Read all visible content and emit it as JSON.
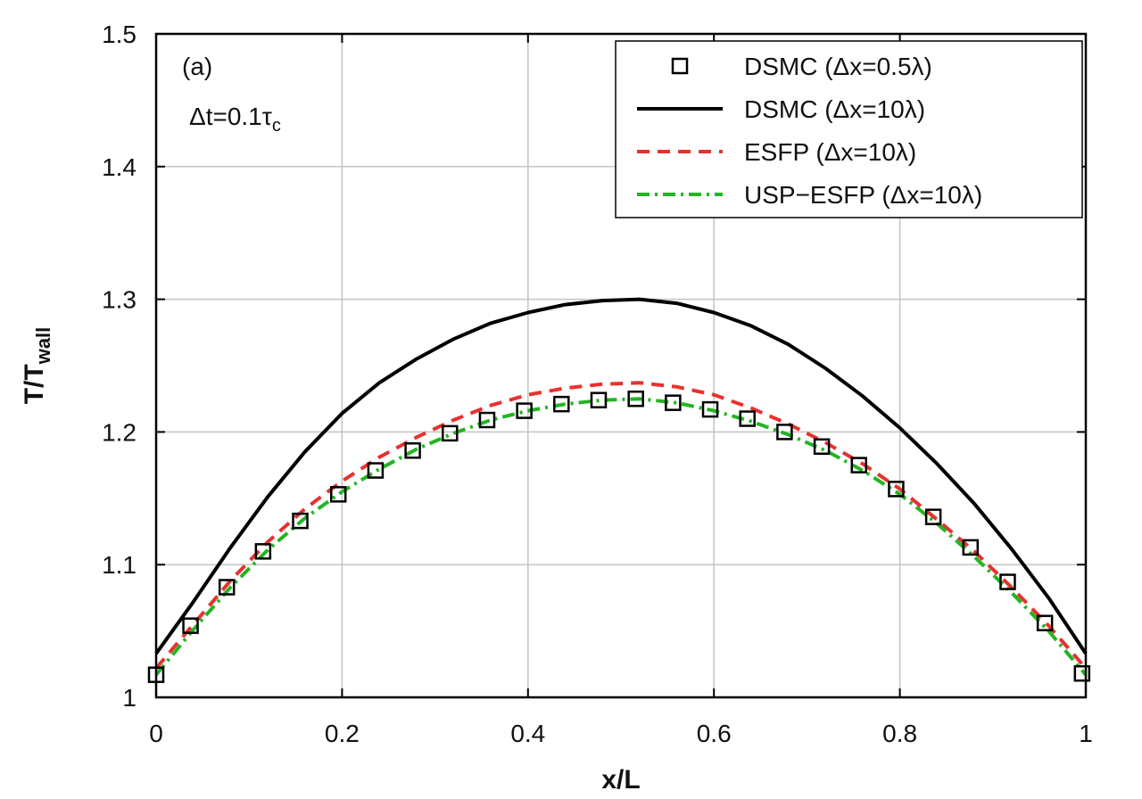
{
  "chart_data": {
    "type": "line",
    "xlabel": "x/L",
    "ylabel_main": "T/T",
    "ylabel_sub": "wall",
    "xlim": [
      0,
      1
    ],
    "ylim": [
      1,
      1.5
    ],
    "x_ticks": [
      0,
      0.2,
      0.4,
      0.6,
      0.8,
      1
    ],
    "x_tick_labels": [
      "0",
      "0.2",
      "0.4",
      "0.6",
      "0.8",
      "1"
    ],
    "y_ticks": [
      1,
      1.1,
      1.2,
      1.3,
      1.4,
      1.5
    ],
    "y_tick_labels": [
      "1",
      "1.1",
      "1.2",
      "1.3",
      "1.4",
      "1.5"
    ],
    "grid": true,
    "legend_position": "top-right",
    "annotations": {
      "panel": "(a)",
      "dt_prefix": "Δt=0.1τ",
      "dt_sub": "c"
    },
    "series": [
      {
        "name": "DSMC (Δx=0.5λ)",
        "style": "square-markers",
        "color": "#000000",
        "x": [
          0,
          0.037,
          0.076,
          0.115,
          0.155,
          0.196,
          0.236,
          0.276,
          0.316,
          0.356,
          0.396,
          0.436,
          0.476,
          0.516,
          0.556,
          0.596,
          0.636,
          0.676,
          0.716,
          0.756,
          0.796,
          0.836,
          0.876,
          0.916,
          0.956,
          0.996
        ],
        "y": [
          1.017,
          1.054,
          1.083,
          1.11,
          1.133,
          1.153,
          1.171,
          1.186,
          1.199,
          1.209,
          1.216,
          1.221,
          1.224,
          1.225,
          1.222,
          1.217,
          1.21,
          1.2,
          1.189,
          1.175,
          1.157,
          1.136,
          1.113,
          1.087,
          1.056,
          1.018
        ]
      },
      {
        "name": "DSMC (Δx=10λ)",
        "style": "solid",
        "color": "#000000",
        "x": [
          0,
          0.04,
          0.08,
          0.12,
          0.16,
          0.2,
          0.24,
          0.28,
          0.32,
          0.36,
          0.4,
          0.44,
          0.48,
          0.52,
          0.56,
          0.6,
          0.64,
          0.68,
          0.72,
          0.76,
          0.8,
          0.84,
          0.88,
          0.92,
          0.96,
          1
        ],
        "y": [
          1.033,
          1.072,
          1.113,
          1.151,
          1.185,
          1.214,
          1.237,
          1.255,
          1.27,
          1.282,
          1.29,
          1.296,
          1.299,
          1.3,
          1.297,
          1.29,
          1.28,
          1.266,
          1.248,
          1.227,
          1.203,
          1.176,
          1.146,
          1.112,
          1.075,
          1.033
        ]
      },
      {
        "name": "ESFP (Δx=10λ)",
        "style": "dashed",
        "color": "#e8312f",
        "x": [
          0,
          0.04,
          0.08,
          0.12,
          0.16,
          0.2,
          0.24,
          0.28,
          0.32,
          0.36,
          0.4,
          0.44,
          0.48,
          0.52,
          0.56,
          0.6,
          0.64,
          0.68,
          0.72,
          0.76,
          0.8,
          0.84,
          0.88,
          0.92,
          0.96,
          1
        ],
        "y": [
          1.022,
          1.055,
          1.088,
          1.117,
          1.142,
          1.163,
          1.181,
          1.196,
          1.209,
          1.22,
          1.228,
          1.233,
          1.236,
          1.237,
          1.234,
          1.228,
          1.218,
          1.206,
          1.192,
          1.176,
          1.157,
          1.134,
          1.11,
          1.083,
          1.054,
          1.022
        ]
      },
      {
        "name": "USP−ESFP (Δx=10λ)",
        "style": "dash-dot",
        "color": "#22b522",
        "x": [
          0,
          0.04,
          0.08,
          0.12,
          0.16,
          0.2,
          0.24,
          0.28,
          0.32,
          0.36,
          0.4,
          0.44,
          0.48,
          0.52,
          0.56,
          0.6,
          0.64,
          0.68,
          0.72,
          0.76,
          0.8,
          0.84,
          0.88,
          0.92,
          0.96,
          1
        ],
        "y": [
          1.017,
          1.051,
          1.083,
          1.111,
          1.135,
          1.155,
          1.172,
          1.187,
          1.199,
          1.209,
          1.216,
          1.221,
          1.224,
          1.225,
          1.222,
          1.216,
          1.208,
          1.198,
          1.186,
          1.171,
          1.153,
          1.131,
          1.106,
          1.079,
          1.05,
          1.017
        ]
      }
    ]
  }
}
